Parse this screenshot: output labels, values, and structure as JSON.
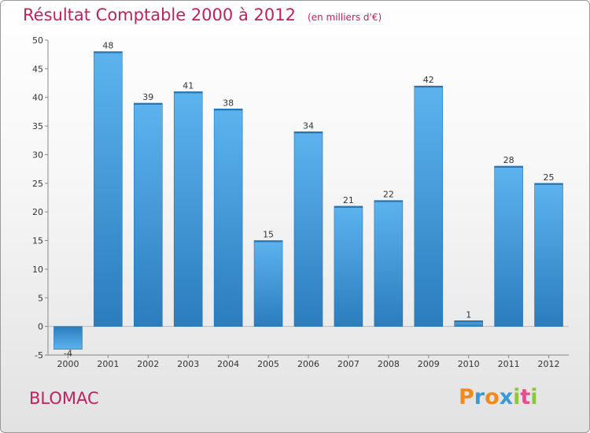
{
  "title": "Résultat Comptable 2000 à 2012",
  "unit_note": "(en milliers d'€)",
  "commune": "BLOMAC",
  "logo": {
    "text": "Proxiti",
    "letters": [
      "P",
      "r",
      "o",
      "x",
      "i",
      "t",
      "i"
    ],
    "colors": [
      "#f08a1c",
      "#3a9ad9",
      "#f08a1c",
      "#3a9ad9",
      "#8cc63f",
      "#e84c8b",
      "#8cc63f"
    ]
  },
  "colors": {
    "bar": "#3f9ee0",
    "bar_light": "#5fb6ef",
    "bar_dark": "#2a7fc0",
    "title": "#c0215f"
  },
  "chart_data": {
    "type": "bar",
    "title": "Résultat Comptable 2000 à 2012",
    "xlabel": "",
    "ylabel": "",
    "categories": [
      "2000",
      "2001",
      "2002",
      "2003",
      "2004",
      "2005",
      "2006",
      "2007",
      "2008",
      "2009",
      "2010",
      "2011",
      "2012"
    ],
    "values": [
      -4,
      48,
      39,
      41,
      38,
      15,
      34,
      21,
      22,
      42,
      1,
      28,
      25
    ],
    "labels": [
      "-4",
      "48",
      "39",
      "41",
      "38",
      "15",
      "34",
      "21",
      "22",
      "42",
      "1",
      "28",
      "25"
    ],
    "ylim": [
      -5,
      50
    ],
    "yticks": [
      -5,
      0,
      5,
      10,
      15,
      20,
      25,
      30,
      35,
      40,
      45,
      50
    ],
    "grid": false
  }
}
